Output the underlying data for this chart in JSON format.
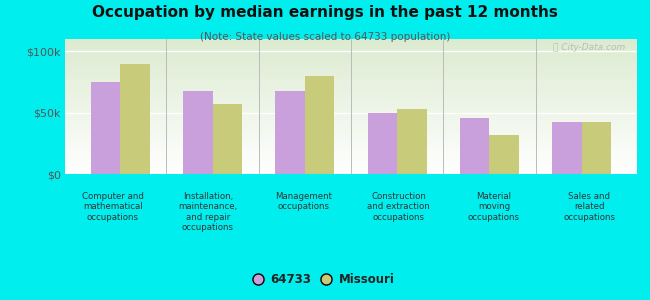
{
  "title": "Occupation by median earnings in the past 12 months",
  "subtitle": "(Note: State values scaled to 64733 population)",
  "categories": [
    "Computer and\nmathematical\noccupations",
    "Installation,\nmaintenance,\nand repair\noccupations",
    "Management\noccupations",
    "Construction\nand extraction\noccupations",
    "Material\nmoving\noccupations",
    "Sales and\nrelated\noccupations"
  ],
  "values_64733": [
    75000,
    68000,
    68000,
    50000,
    46000,
    42000
  ],
  "values_missouri": [
    90000,
    57000,
    80000,
    53000,
    32000,
    42500
  ],
  "color_64733": "#c9a0dc",
  "color_missouri": "#c8cc7a",
  "background_color": "#00eeee",
  "plot_bg_color": "#e8f0d8",
  "ylim": [
    0,
    110000
  ],
  "yticks": [
    0,
    50000,
    100000
  ],
  "yticklabels": [
    "$0",
    "$50k",
    "$100k"
  ],
  "bar_width": 0.32,
  "legend_labels": [
    "64733",
    "Missouri"
  ],
  "watermark": "ⓘ City-Data.com"
}
